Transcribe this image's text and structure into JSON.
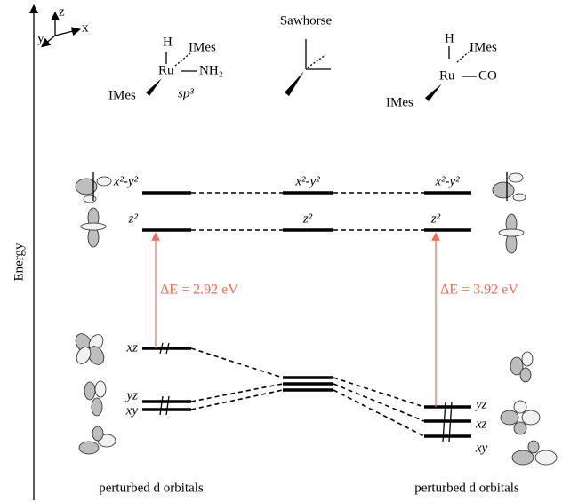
{
  "axis": {
    "label": "Energy",
    "coords": [
      "z",
      "y",
      "x"
    ]
  },
  "header": {
    "center": "Sawhorse"
  },
  "molecules": [
    {
      "h": "H",
      "ligand_top": "IMes",
      "metal": "Ru",
      "ligand_right": "NH₂",
      "ligand_left": "IMes",
      "hybrid": "sp³"
    },
    {
      "h": "H",
      "ligand_top": "IMes",
      "metal": "Ru",
      "ligand_right": "CO",
      "ligand_left": "IMes"
    }
  ],
  "levels": {
    "left": [
      "x²-y²",
      "z²",
      "xz",
      "yz",
      "xy"
    ],
    "center": [
      "x²-y²",
      "z²"
    ],
    "right": [
      "x²-y²",
      "z²",
      "yz",
      "xz",
      "xy"
    ]
  },
  "gaps": [
    "ΔE = 2.92 eV",
    "ΔE = 3.92 eV"
  ],
  "footers": [
    "perturbed d orbitals",
    "perturbed d orbitals"
  ]
}
